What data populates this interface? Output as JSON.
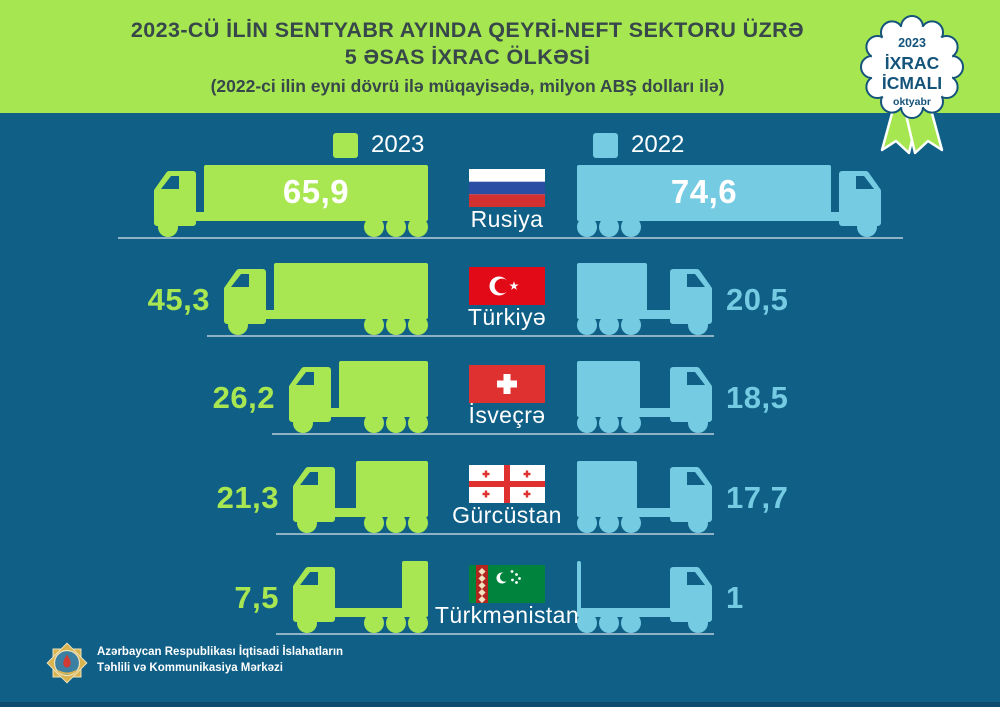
{
  "header": {
    "title_line1": "2023-CÜ İLİN SENTYABR AYINDA QEYRİ-NEFT SEKTORU ÜZRƏ",
    "title_line2": "5 ƏSAS İXRAC ÖLKƏSİ",
    "subtitle": "(2022-ci ilin eyni dövrü ilə müqayisədə, milyon ABŞ dolları ilə)"
  },
  "badge": {
    "year": "2023",
    "title_line1": "İXRAC",
    "title_line2": "İCMALI",
    "month": "oktyabr"
  },
  "legend": {
    "items": [
      {
        "label": "2023",
        "color": "#a8e751"
      },
      {
        "label": "2022",
        "color": "#74cbe2"
      }
    ]
  },
  "chart_data": {
    "type": "bar",
    "subtype": "paired-horizontal-truck-pictogram",
    "title": "2023-cü ilin sentyabr ayında qeyri-neft sektoru üzrə 5 əsas ixrac ölkəsi",
    "unit": "milyon ABŞ dolları",
    "categories": [
      "Rusiya",
      "Türkiyə",
      "İsveçrə",
      "Gürcüstan",
      "Türkmənistan"
    ],
    "flags": [
      "russia",
      "turkey",
      "switzerland",
      "georgia",
      "turkmenistan"
    ],
    "series": [
      {
        "name": "2023",
        "color": "#a8e751",
        "values": [
          65.9,
          45.3,
          26.2,
          21.3,
          7.5
        ],
        "labels": [
          "65,9",
          "45,3",
          "26,2",
          "21,3",
          "7,5"
        ]
      },
      {
        "name": "2022",
        "color": "#74cbe2",
        "values": [
          74.6,
          20.5,
          18.5,
          17.7,
          1
        ],
        "labels": [
          "74,6",
          "20,5",
          "18,5",
          "17,7",
          "1"
        ]
      }
    ],
    "legend_position": "top",
    "grid": false
  },
  "footer": {
    "org_line1": "Azərbaycan Respublikası İqtisadi İslahatların",
    "org_line2": "Təhlili və Kommunikasiya Mərkəzi"
  },
  "colors": {
    "background": "#0f5f86",
    "header_bg": "#a6e751",
    "title_text": "#37474a",
    "ground_line": "#8fb3c4",
    "badge_navy": "#14537a",
    "value_2023": "#a8e751",
    "value_2022": "#74cbe2"
  }
}
